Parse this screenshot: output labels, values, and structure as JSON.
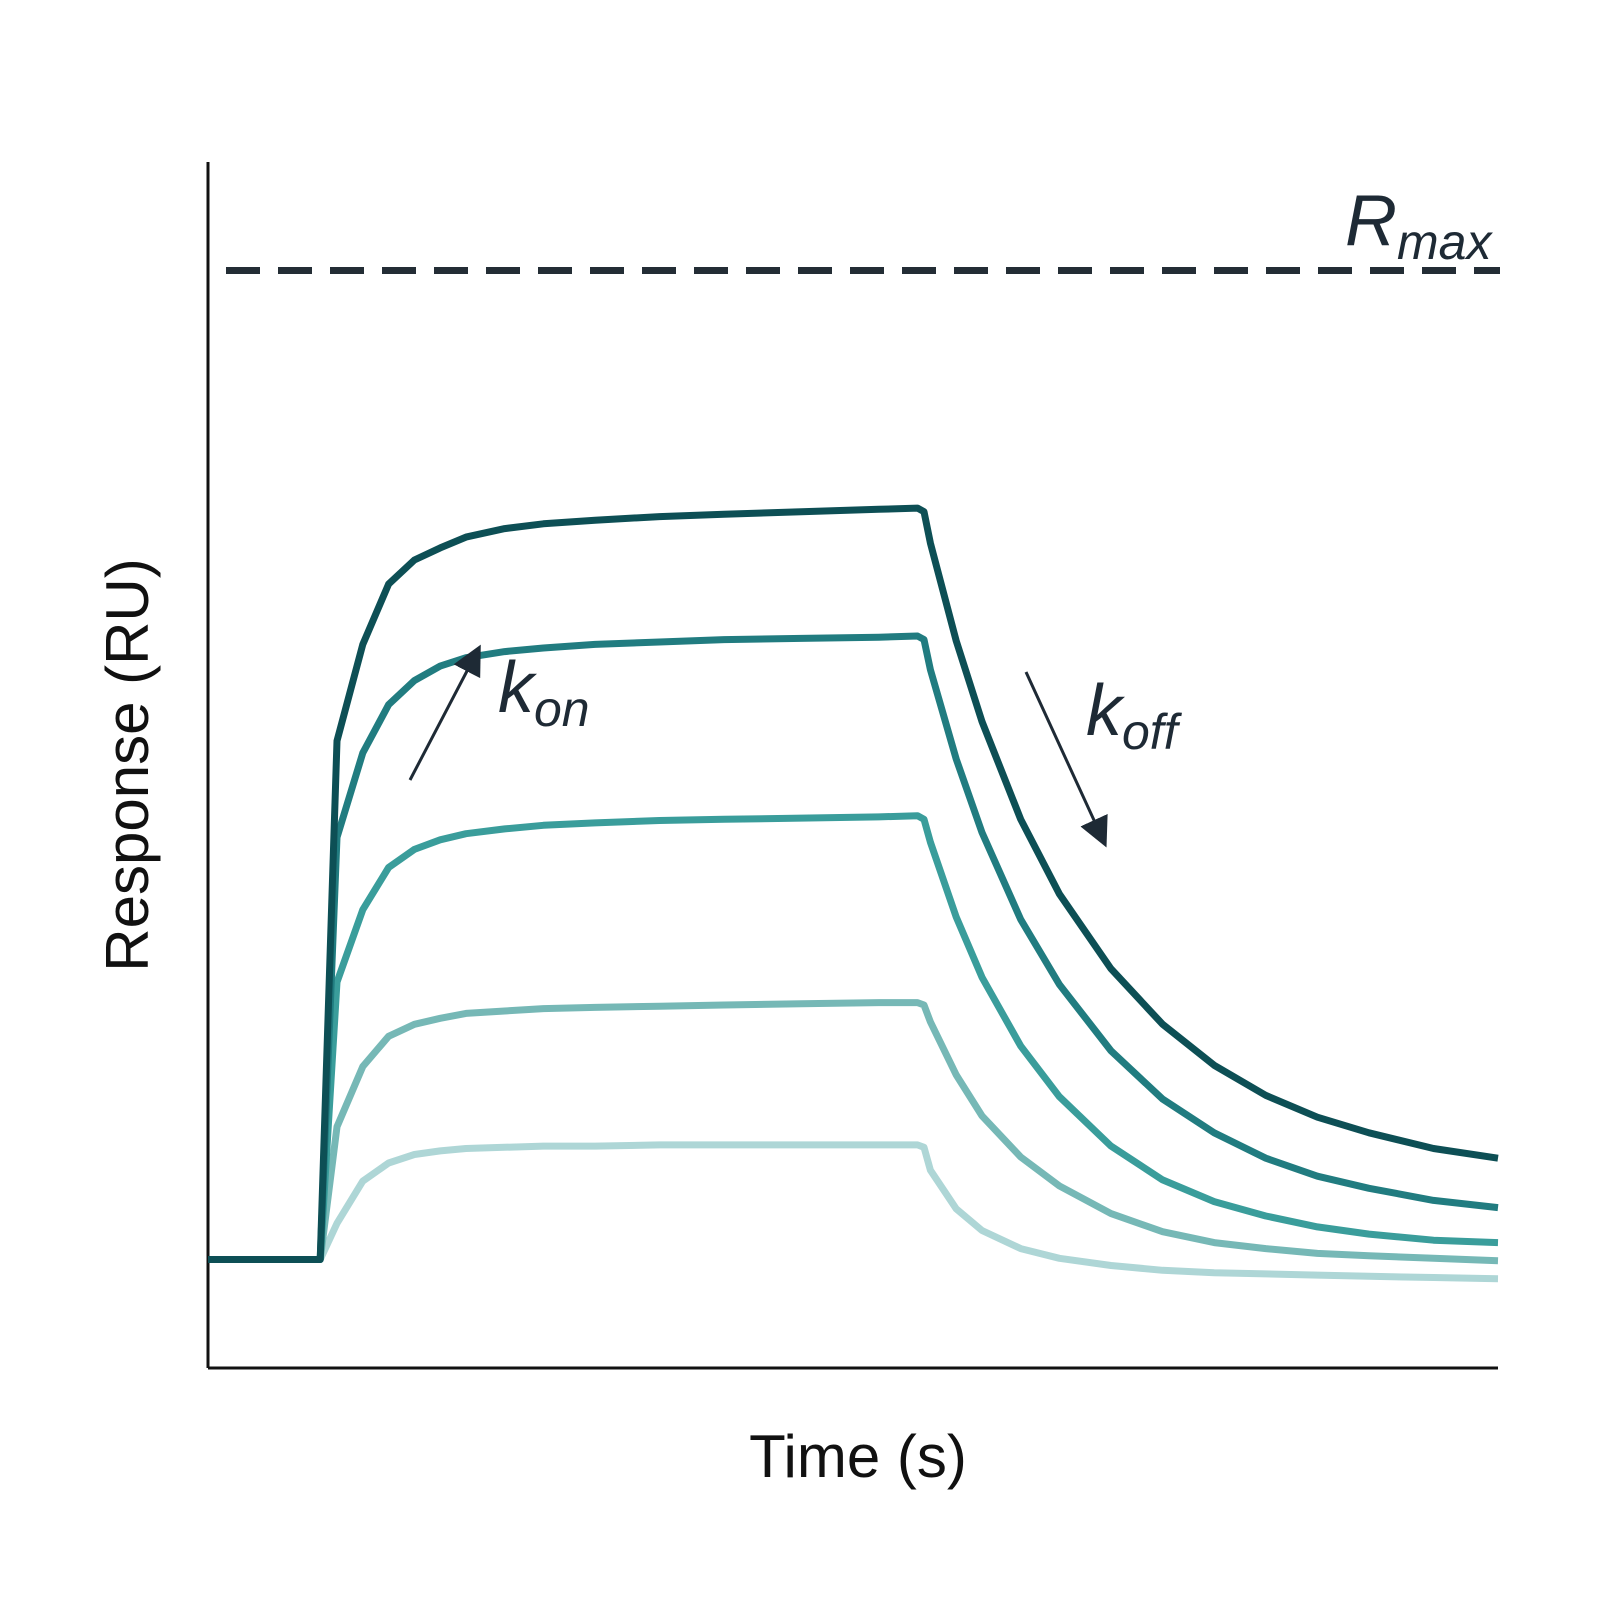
{
  "chart_data": {
    "type": "line",
    "xlabel": "Time (s)",
    "ylabel": "Response (RU)",
    "xlim": [
      0,
      100
    ],
    "ylim": [
      0,
      100
    ],
    "grid": false,
    "legend": "none",
    "x": [
      0,
      8.7,
      10,
      12,
      14,
      16,
      18,
      20,
      23,
      26,
      30,
      35,
      40,
      46,
      52,
      55,
      55.5,
      56,
      58,
      60,
      63,
      66,
      70,
      74,
      78,
      82,
      86,
      90,
      95,
      100
    ],
    "series": [
      {
        "color": "#0d4f55",
        "values": [
          9,
          9,
          52,
          60,
          65,
          67,
          68,
          68.9,
          69.6,
          70,
          70.3,
          70.6,
          70.8,
          71,
          71.2,
          71.3,
          71,
          68.4,
          60.3,
          53.6,
          45.5,
          39.3,
          33.1,
          28.5,
          25.1,
          22.6,
          20.8,
          19.5,
          18.2,
          17.4
        ]
      },
      {
        "color": "#217c80",
        "values": [
          9,
          9,
          44,
          51,
          55,
          57,
          58.2,
          58.9,
          59.4,
          59.7,
          60,
          60.2,
          60.4,
          60.5,
          60.6,
          60.7,
          60.4,
          57.9,
          50.5,
          44.4,
          37.2,
          31.8,
          26.3,
          22.3,
          19.5,
          17.4,
          15.9,
          14.9,
          13.9,
          13.3
        ]
      },
      {
        "color": "#3a9d9b",
        "values": [
          9,
          9,
          32,
          38,
          41.5,
          43,
          43.8,
          44.3,
          44.7,
          45,
          45.2,
          45.4,
          45.5,
          45.6,
          45.7,
          45.8,
          45.5,
          43.6,
          37.4,
          32.4,
          26.7,
          22.5,
          18.4,
          15.6,
          13.8,
          12.6,
          11.7,
          11.1,
          10.6,
          10.4
        ]
      },
      {
        "color": "#76b8b6",
        "values": [
          9,
          9,
          20,
          25,
          27.5,
          28.5,
          29,
          29.4,
          29.6,
          29.8,
          29.9,
          30,
          30.1,
          30.2,
          30.3,
          30.3,
          30.1,
          28.7,
          24.3,
          20.9,
          17.5,
          15.1,
          12.8,
          11.3,
          10.4,
          9.9,
          9.5,
          9.3,
          9.1,
          8.9
        ]
      },
      {
        "color": "#aed6d6",
        "values": [
          9,
          9,
          12,
          15.5,
          17,
          17.7,
          18,
          18.2,
          18.3,
          18.4,
          18.4,
          18.5,
          18.5,
          18.5,
          18.5,
          18.5,
          18.3,
          16.4,
          13.2,
          11.4,
          9.9,
          9.1,
          8.5,
          8.1,
          7.9,
          7.8,
          7.7,
          7.6,
          7.5,
          7.4
        ]
      }
    ],
    "reference_lines": [
      {
        "orientation": "horizontal",
        "y": 91,
        "style": "dashed",
        "color": "#232d35"
      }
    ],
    "annotations": [
      {
        "main": "R",
        "sub": "max",
        "x": 93,
        "y": 91
      },
      {
        "main": "k",
        "sub": "on",
        "x": 22,
        "y": 51
      },
      {
        "main": "k",
        "sub": "off",
        "x": 68,
        "y": 49
      }
    ]
  }
}
